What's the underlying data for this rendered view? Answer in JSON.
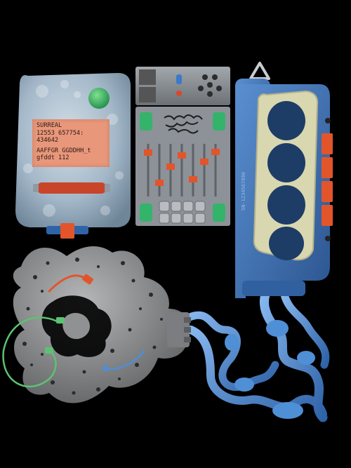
{
  "label": {
    "line1": "SURREAL",
    "line2": "12553 657754:",
    "line3": "434642",
    "line4": "AAFFGR GGDDHH_t",
    "line5": "gfddt 112"
  },
  "side_engraving": "SN-1234567890",
  "colors": {
    "background": "#000000",
    "ice": "#9fb6c9",
    "accent_green": "#34b36b",
    "accent_orange": "#e2552b",
    "panel_grey": "#8d9298",
    "handle_blue": "#3f74b3",
    "knuckle_cream": "#d8d7b0",
    "rock_grey": "#8f9193",
    "tube_blue": "#4f8fd6",
    "wire_green": "#5cc272"
  }
}
